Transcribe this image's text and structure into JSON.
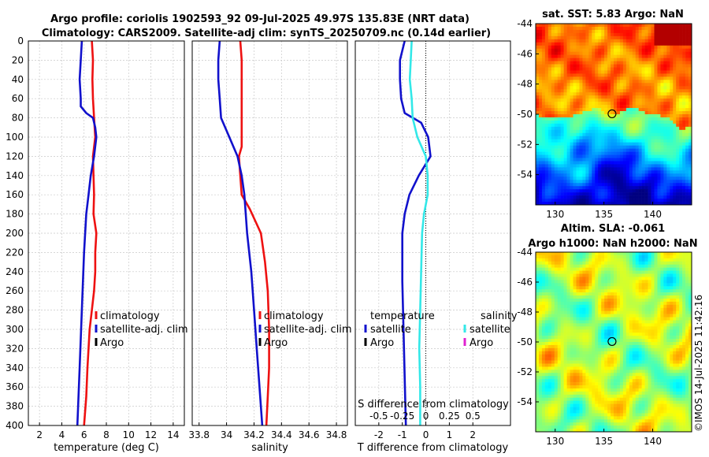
{
  "title": {
    "line1": "Argo profile: coriolis 1902593_92 09-Jul-2025 49.97S 135.83E (NRT data)",
    "line2": "Climatology: CARS2009. Satellite-adj clim: synTS_20250709.nc (0.14d earlier)"
  },
  "colors": {
    "climatology": "#ee1111",
    "satellite": "#1111cc",
    "argo": "#000000",
    "sat_salinity": "#33e8e8",
    "argo_salinity": "#e020d0"
  },
  "depth_axis": {
    "range": [
      0,
      400
    ],
    "ticks": [
      "0",
      "20",
      "40",
      "60",
      "80",
      "100",
      "120",
      "140",
      "160",
      "180",
      "200",
      "220",
      "240",
      "260",
      "280",
      "300",
      "320",
      "340",
      "360",
      "380",
      "400"
    ]
  },
  "chart_data": [
    {
      "type": "line",
      "title": "",
      "xlabel": "temperature (deg C)",
      "ylabel": "",
      "xlim": [
        1,
        15
      ],
      "ylim": [
        400,
        0
      ],
      "xticks": [
        2,
        4,
        6,
        8,
        10,
        12,
        14
      ],
      "xtick_labels": [
        "2",
        "4",
        "6",
        "8",
        "10",
        "12",
        "14"
      ],
      "series": [
        {
          "name": "climatology",
          "color": "#ee1111",
          "points": [
            [
              6.7,
              0
            ],
            [
              6.8,
              20
            ],
            [
              6.75,
              40
            ],
            [
              6.8,
              60
            ],
            [
              6.9,
              80
            ],
            [
              7.0,
              100
            ],
            [
              6.8,
              120
            ],
            [
              6.85,
              140
            ],
            [
              6.9,
              160
            ],
            [
              6.85,
              180
            ],
            [
              7.1,
              200
            ],
            [
              7.0,
              220
            ],
            [
              7.0,
              240
            ],
            [
              6.9,
              260
            ],
            [
              6.7,
              280
            ],
            [
              6.5,
              300
            ],
            [
              6.3,
              340
            ],
            [
              6.2,
              370
            ],
            [
              6.0,
              400
            ]
          ]
        },
        {
          "name": "satellite-adj. clim",
          "color": "#1111cc",
          "points": [
            [
              5.8,
              0
            ],
            [
              5.7,
              20
            ],
            [
              5.6,
              40
            ],
            [
              5.7,
              60
            ],
            [
              5.7,
              68
            ],
            [
              6.2,
              75
            ],
            [
              6.8,
              80
            ],
            [
              7.0,
              90
            ],
            [
              7.1,
              100
            ],
            [
              6.9,
              120
            ],
            [
              6.6,
              140
            ],
            [
              6.4,
              160
            ],
            [
              6.2,
              180
            ],
            [
              6.0,
              220
            ],
            [
              5.8,
              280
            ],
            [
              5.6,
              340
            ],
            [
              5.4,
              400
            ]
          ]
        },
        {
          "name": "Argo",
          "color": "#000000",
          "points": []
        }
      ],
      "legend": {
        "position": "mid-right",
        "entries": [
          "climatology",
          "satellite-adj. clim",
          "Argo"
        ]
      }
    },
    {
      "type": "line",
      "title": "",
      "xlabel": "salinity",
      "ylabel": "",
      "xlim": [
        33.75,
        34.88
      ],
      "ylim": [
        400,
        0
      ],
      "xticks": [
        33.8,
        34.0,
        34.2,
        34.4,
        34.6,
        34.8
      ],
      "xtick_labels": [
        "33.8",
        "34",
        "34.2",
        "34.4",
        "34.6",
        "34.8"
      ],
      "series": [
        {
          "name": "climatology",
          "color": "#ee1111",
          "points": [
            [
              34.1,
              0
            ],
            [
              34.11,
              20
            ],
            [
              34.11,
              40
            ],
            [
              34.11,
              60
            ],
            [
              34.11,
              80
            ],
            [
              34.11,
              100
            ],
            [
              34.11,
              110
            ],
            [
              34.09,
              120
            ],
            [
              34.1,
              140
            ],
            [
              34.11,
              160
            ],
            [
              34.17,
              175
            ],
            [
              34.25,
              200
            ],
            [
              34.28,
              230
            ],
            [
              34.3,
              260
            ],
            [
              34.31,
              300
            ],
            [
              34.31,
              340
            ],
            [
              34.3,
              370
            ],
            [
              34.29,
              400
            ]
          ]
        },
        {
          "name": "satellite-adj. clim",
          "color": "#1111cc",
          "points": [
            [
              33.95,
              0
            ],
            [
              33.94,
              20
            ],
            [
              33.94,
              40
            ],
            [
              33.95,
              60
            ],
            [
              33.96,
              80
            ],
            [
              34.02,
              100
            ],
            [
              34.08,
              120
            ],
            [
              34.11,
              140
            ],
            [
              34.13,
              160
            ],
            [
              34.15,
              200
            ],
            [
              34.18,
              240
            ],
            [
              34.2,
              280
            ],
            [
              34.22,
              320
            ],
            [
              34.24,
              360
            ],
            [
              34.26,
              400
            ]
          ]
        },
        {
          "name": "Argo",
          "color": "#000000",
          "points": []
        }
      ],
      "legend": {
        "position": "mid-right",
        "entries": [
          "climatology",
          "satellite-adj. clim",
          "Argo"
        ]
      }
    },
    {
      "type": "line",
      "title": "",
      "xlabel": "T difference from climatology",
      "xlabel_top": "S difference from climatology",
      "ylabel": "",
      "xlim": [
        -3,
        3.6
      ],
      "ylim": [
        400,
        0
      ],
      "xticks": [
        -2,
        -1,
        0,
        1,
        2
      ],
      "xtick_labels": [
        "-2",
        "-1",
        "0",
        "1",
        "2"
      ],
      "xticks_top": [
        -0.5,
        -0.25,
        0,
        0.25,
        0.5
      ],
      "xtick_labels_top": [
        "-0.5",
        "-0.25",
        "0",
        "0.25",
        "0.5"
      ],
      "zero_line": 0,
      "series": [
        {
          "name": "temperature satellite",
          "axis": "T",
          "color": "#1111cc",
          "points": [
            [
              -0.9,
              0
            ],
            [
              -1.0,
              10
            ],
            [
              -1.1,
              20
            ],
            [
              -1.1,
              40
            ],
            [
              -1.05,
              60
            ],
            [
              -0.9,
              75
            ],
            [
              -0.2,
              85
            ],
            [
              0.1,
              100
            ],
            [
              0.2,
              120
            ],
            [
              -0.3,
              140
            ],
            [
              -0.7,
              160
            ],
            [
              -0.9,
              180
            ],
            [
              -1.0,
              200
            ],
            [
              -1.0,
              250
            ],
            [
              -0.95,
              300
            ],
            [
              -0.9,
              350
            ],
            [
              -0.85,
              400
            ]
          ]
        },
        {
          "name": "salinity satellite",
          "axis": "S",
          "color": "#33e8e8",
          "points": [
            [
              -0.15,
              0
            ],
            [
              -0.16,
              20
            ],
            [
              -0.17,
              40
            ],
            [
              -0.15,
              60
            ],
            [
              -0.14,
              80
            ],
            [
              -0.09,
              100
            ],
            [
              0.0,
              120
            ],
            [
              0.02,
              140
            ],
            [
              0.02,
              160
            ],
            [
              -0.02,
              180
            ],
            [
              -0.04,
              200
            ],
            [
              -0.05,
              240
            ],
            [
              -0.06,
              280
            ],
            [
              -0.07,
              320
            ],
            [
              -0.06,
              360
            ],
            [
              -0.06,
              400
            ]
          ]
        },
        {
          "name": "temperature Argo",
          "axis": "T",
          "color": "#000000",
          "points": []
        },
        {
          "name": "salinity Argo",
          "axis": "S",
          "color": "#e020d0",
          "points": []
        }
      ],
      "legend": {
        "position": "mid",
        "temperature_title": "temperature",
        "salinity_title": "salinity",
        "entries": [
          "satellite",
          "Argo",
          "satellite",
          "Argo"
        ]
      }
    }
  ],
  "maps": [
    {
      "title": "sat. SST: 5.83 Argo: NaN",
      "kind": "sst",
      "lat_ticks": [
        "-44",
        "-46",
        "-48",
        "-50",
        "-52",
        "-54"
      ],
      "lon_ticks": [
        "130",
        "135",
        "140"
      ],
      "lat_range": [
        -56,
        -44
      ],
      "lon_range": [
        128,
        144
      ],
      "marker": {
        "lon": 135.83,
        "lat": -49.97
      }
    },
    {
      "title1": "Altim. SLA: -0.061",
      "title2": "Argo h1000: NaN h2000: NaN",
      "kind": "sla",
      "lat_ticks": [
        "-44",
        "-46",
        "-48",
        "-50",
        "-52",
        "-54"
      ],
      "lon_ticks": [
        "130",
        "135",
        "140"
      ],
      "lat_range": [
        -56,
        -44
      ],
      "lon_range": [
        128,
        144
      ],
      "marker": {
        "lon": 135.83,
        "lat": -49.97
      }
    }
  ],
  "stamp": "©IMOS 14-Jul-2025 11:42:16"
}
